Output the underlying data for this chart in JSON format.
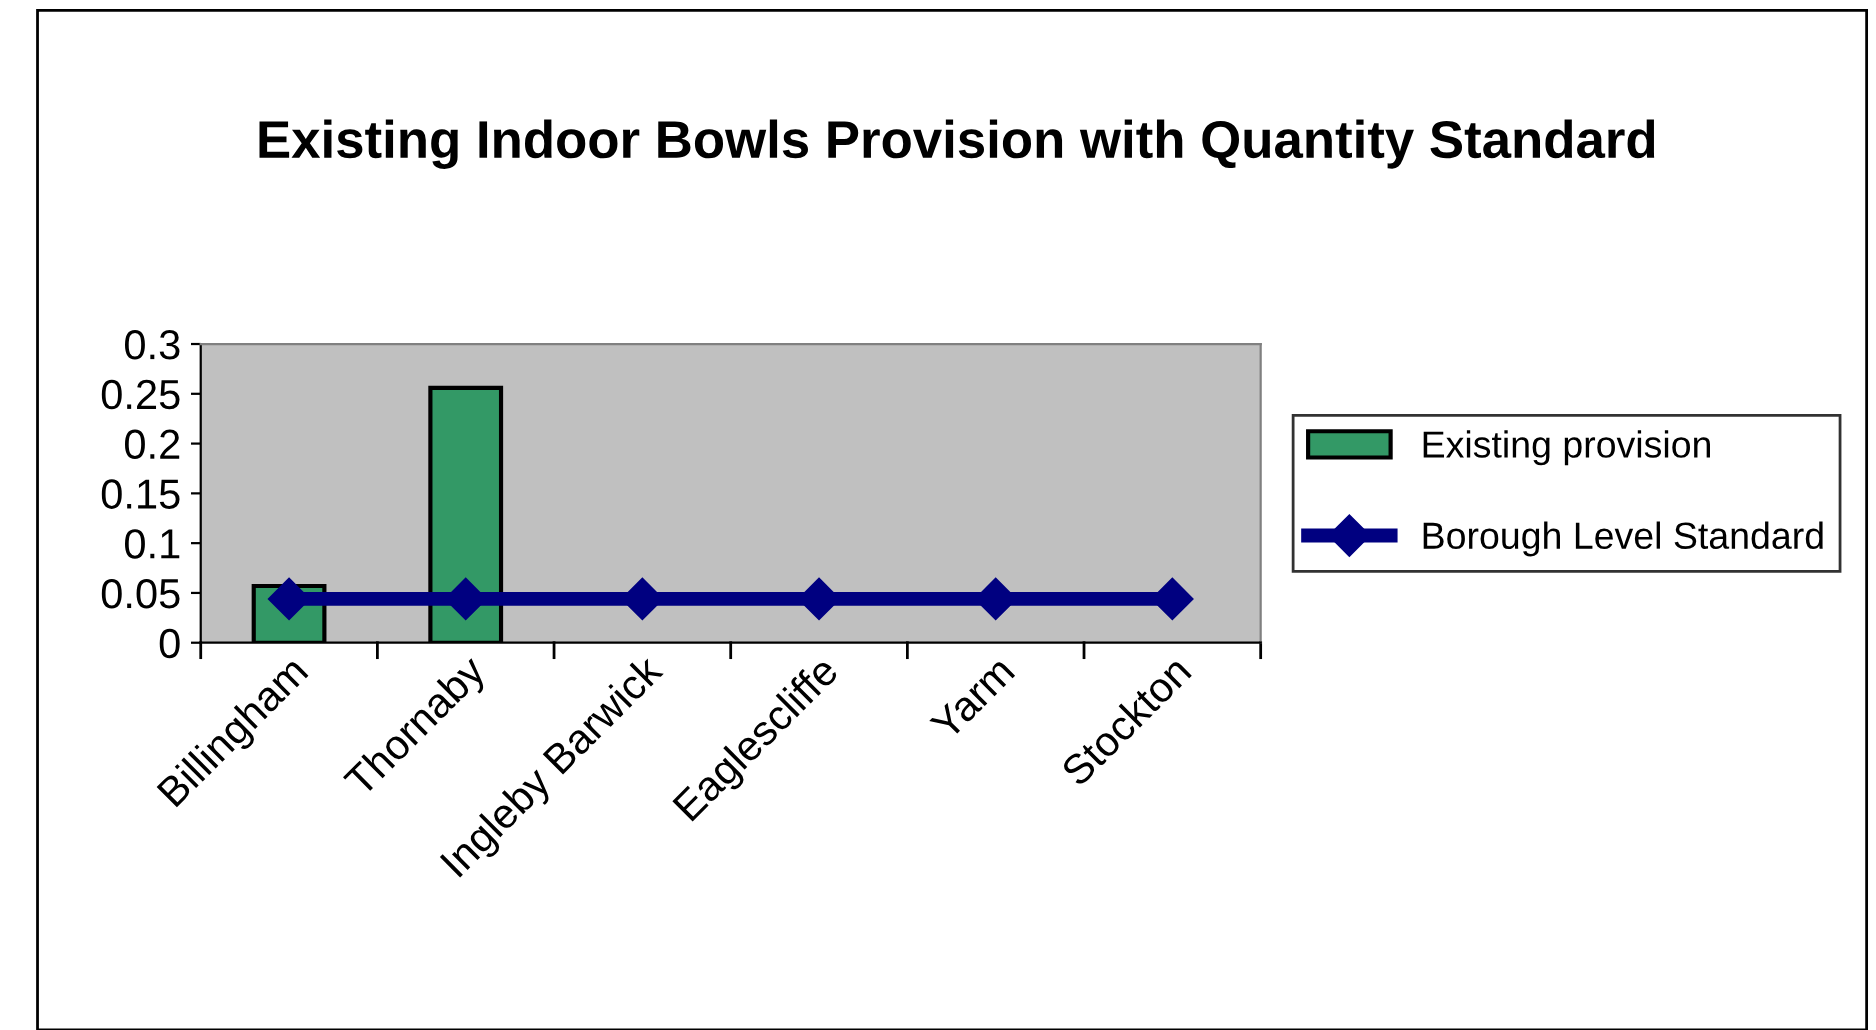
{
  "chart_data": {
    "type": "bar",
    "title": "Existing Indoor Bowls Provision with Quantity Standard",
    "categories": [
      "Billingham",
      "Thornaby",
      "Ingleby Barwick",
      "Eaglescliffe",
      "Yarm",
      "Stockton"
    ],
    "series": [
      {
        "name": "Existing provision",
        "color": "#339966",
        "values": [
          0.057,
          0.256,
          null,
          null,
          null,
          null
        ]
      },
      {
        "name": "Borough Level Standard",
        "type": "line",
        "color": "#000080",
        "marker": "diamond",
        "values": [
          0.044,
          0.044,
          0.044,
          0.044,
          0.044,
          0.044
        ]
      }
    ],
    "ylim": [
      0,
      0.3
    ],
    "yticks": [
      0,
      0.05,
      0.1,
      0.15,
      0.2,
      0.25,
      0.3
    ],
    "grid": false,
    "legend": "right"
  }
}
